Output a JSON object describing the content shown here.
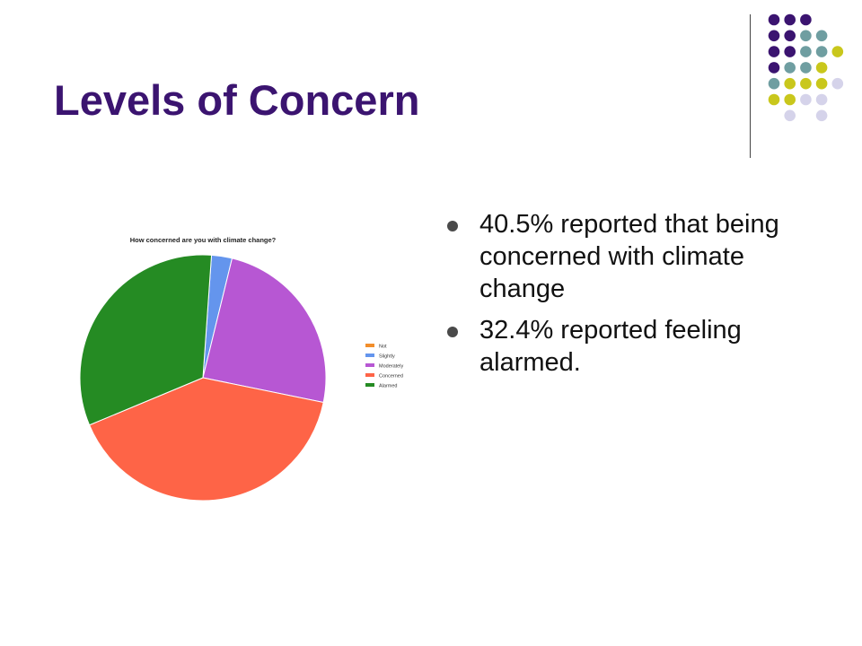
{
  "slide": {
    "title": "Levels of Concern",
    "bullets": [
      "40.5% reported  that being concerned with climate change",
      "32.4% reported feeling alarmed."
    ]
  },
  "decoration": {
    "dot_colors": [
      "#3b1470",
      "#6f9ea1",
      "#c9c71c",
      "#d5d3ea"
    ]
  },
  "chart_data": {
    "type": "pie",
    "title": "How concerned are you with climate change?",
    "categories": [
      "Not",
      "Slightly",
      "Moderately",
      "Concerned",
      "Alarmed"
    ],
    "values": [
      0,
      2.7,
      24.4,
      40.5,
      32.4
    ],
    "colors": [
      "#f28e2b",
      "#6495ed",
      "#b757d3",
      "#fe6447",
      "#258b23"
    ],
    "legend_position": "right"
  }
}
